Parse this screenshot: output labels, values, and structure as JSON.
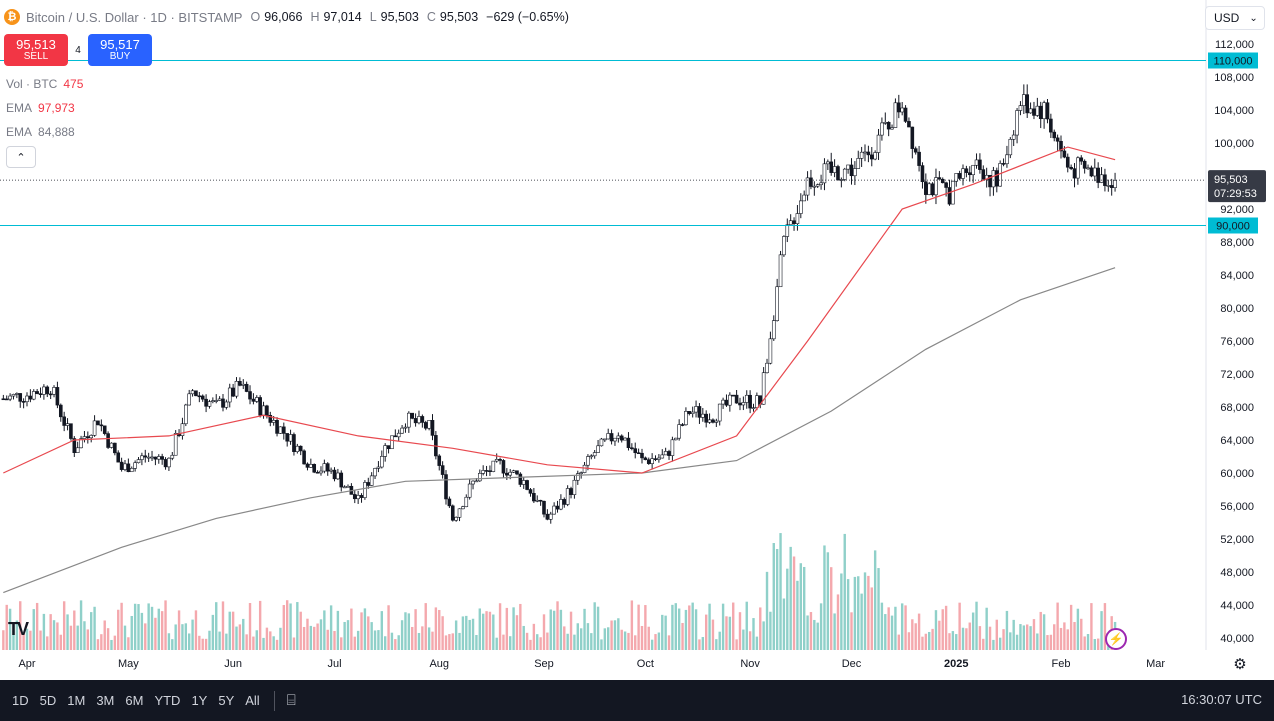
{
  "header": {
    "symbol_icon": "bitcoin-icon",
    "symbol_icon_glyph": "₿",
    "title": "Bitcoin / U.S. Dollar · 1D · BITSTAMP",
    "ohlc": [
      {
        "key": "O",
        "value": "96,066"
      },
      {
        "key": "H",
        "value": "97,014"
      },
      {
        "key": "L",
        "value": "95,503"
      },
      {
        "key": "C",
        "value": "95,503"
      }
    ],
    "change": "−629 (−0.65%)"
  },
  "trade": {
    "sell_price": "95,513",
    "sell_label": "SELL",
    "spread": "4",
    "buy_price": "95,517",
    "buy_label": "BUY"
  },
  "indicators": {
    "vol_label": "Vol · BTC",
    "vol_value": "475",
    "ema1_label": "EMA",
    "ema1_value": "97,973",
    "ema2_label": "EMA",
    "ema2_value": "84,888"
  },
  "collapse_glyph": "⌃",
  "currency": "USD",
  "currency_arrow": "⌄",
  "tv_logo": "TV",
  "flash_glyph": "⚡",
  "settings_glyph": "⚙",
  "colors": {
    "up": "#089981",
    "down": "#f23645",
    "ema_fast": "#e8494f",
    "ema_slow": "#888888",
    "hline": "#00bcd4",
    "vol_up": "#8fd0c9",
    "vol_down": "#f4a8ad"
  },
  "chart_data": {
    "type": "candlestick",
    "title": "Bitcoin / U.S. Dollar · 1D · BITSTAMP",
    "x_labels": [
      "Apr",
      "May",
      "Jun",
      "Jul",
      "Aug",
      "Sep",
      "Oct",
      "Nov",
      "Dec",
      "2025",
      "Feb",
      "Mar"
    ],
    "y_ticks": [
      "112,000",
      "108,000",
      "104,000",
      "100,000",
      "96,000",
      "92,000",
      "88,000",
      "84,000",
      "80,000",
      "76,000",
      "72,000",
      "68,000",
      "64,000",
      "60,000",
      "56,000",
      "52,000",
      "48,000",
      "44,000",
      "40,000"
    ],
    "ylim": [
      40000,
      112000
    ],
    "horizontal_lines": [
      {
        "label": "110,000",
        "value": 110000
      },
      {
        "label": "90,000",
        "value": 90000
      }
    ],
    "current_price_label": "95,503",
    "current_price_value": 95503,
    "countdown": "07:29:53",
    "price_path": [
      [
        "2024-03-25",
        69000
      ],
      [
        "2024-04-01",
        69500
      ],
      [
        "2024-04-08",
        70500
      ],
      [
        "2024-04-15",
        63000
      ],
      [
        "2024-04-22",
        66500
      ],
      [
        "2024-04-29",
        60500
      ],
      [
        "2024-05-06",
        62000
      ],
      [
        "2024-05-13",
        61500
      ],
      [
        "2024-05-20",
        70000
      ],
      [
        "2024-05-27",
        68000
      ],
      [
        "2024-06-03",
        70500
      ],
      [
        "2024-06-10",
        67500
      ],
      [
        "2024-06-17",
        64500
      ],
      [
        "2024-06-24",
        61000
      ],
      [
        "2024-07-01",
        60000
      ],
      [
        "2024-07-08",
        56500
      ],
      [
        "2024-07-15",
        62500
      ],
      [
        "2024-07-22",
        66500
      ],
      [
        "2024-07-29",
        65500
      ],
      [
        "2024-08-05",
        54500
      ],
      [
        "2024-08-12",
        59500
      ],
      [
        "2024-08-19",
        61000
      ],
      [
        "2024-08-26",
        59000
      ],
      [
        "2024-09-02",
        54500
      ],
      [
        "2024-09-09",
        58000
      ],
      [
        "2024-09-16",
        62500
      ],
      [
        "2024-09-23",
        65000
      ],
      [
        "2024-09-30",
        61500
      ],
      [
        "2024-10-07",
        62000
      ],
      [
        "2024-10-14",
        67500
      ],
      [
        "2024-10-21",
        67000
      ],
      [
        "2024-10-28",
        69000
      ],
      [
        "2024-11-04",
        68500
      ],
      [
        "2024-11-11",
        88000
      ],
      [
        "2024-11-18",
        95500
      ],
      [
        "2024-11-25",
        96500
      ],
      [
        "2024-12-02",
        97000
      ],
      [
        "2024-12-09",
        100500
      ],
      [
        "2024-12-16",
        105000
      ],
      [
        "2024-12-23",
        95000
      ],
      [
        "2024-12-30",
        94000
      ],
      [
        "2025-01-06",
        98000
      ],
      [
        "2025-01-13",
        95000
      ],
      [
        "2025-01-20",
        105000
      ],
      [
        "2025-01-27",
        104000
      ],
      [
        "2025-02-03",
        97000
      ],
      [
        "2025-02-10",
        96500
      ],
      [
        "2025-02-17",
        95503
      ]
    ],
    "ema_fast_path": [
      [
        "2024-03-25",
        60000
      ],
      [
        "2024-04-15",
        64000
      ],
      [
        "2024-05-13",
        64500
      ],
      [
        "2024-06-10",
        67000
      ],
      [
        "2024-07-08",
        64500
      ],
      [
        "2024-08-05",
        63000
      ],
      [
        "2024-09-02",
        61000
      ],
      [
        "2024-09-30",
        60000
      ],
      [
        "2024-10-28",
        64500
      ],
      [
        "2024-11-18",
        76000
      ],
      [
        "2024-12-16",
        92000
      ],
      [
        "2025-01-06",
        95000
      ],
      [
        "2025-02-03",
        99500
      ],
      [
        "2025-02-17",
        97973
      ]
    ],
    "ema_slow_path": [
      [
        "2024-03-25",
        45500
      ],
      [
        "2024-04-29",
        51000
      ],
      [
        "2024-05-27",
        54500
      ],
      [
        "2024-06-24",
        57000
      ],
      [
        "2024-07-22",
        59000
      ],
      [
        "2024-08-26",
        59500
      ],
      [
        "2024-09-30",
        60000
      ],
      [
        "2024-10-28",
        61500
      ],
      [
        "2024-11-25",
        67500
      ],
      [
        "2024-12-23",
        75000
      ],
      [
        "2025-01-20",
        81000
      ],
      [
        "2025-02-17",
        84888
      ]
    ]
  },
  "bottombar": {
    "ranges": [
      "1D",
      "5D",
      "1M",
      "3M",
      "6M",
      "YTD",
      "1Y",
      "5Y",
      "All"
    ],
    "calendar_glyph": "⌸",
    "clock": "16:30:07 UTC"
  }
}
